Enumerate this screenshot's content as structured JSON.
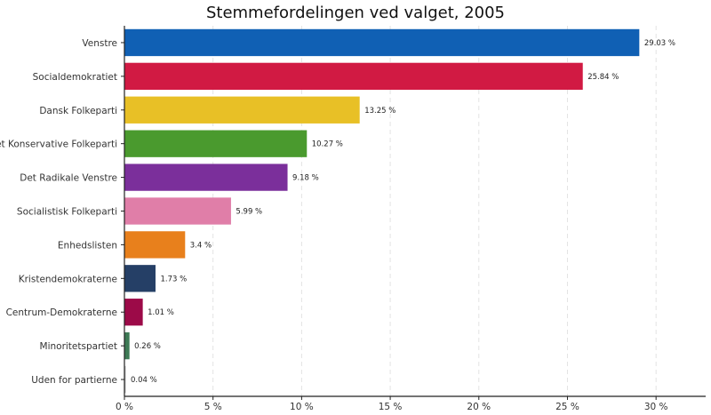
{
  "chart_data": {
    "type": "bar",
    "orientation": "horizontal",
    "title": "Stemmefordelingen ved valget, 2005",
    "xlabel": "",
    "ylabel": "",
    "xlim": [
      0,
      32.8
    ],
    "x_ticks": [
      0,
      5,
      10,
      15,
      20,
      25,
      30
    ],
    "x_tick_labels": [
      "0 %",
      "5 %",
      "10 %",
      "15 %",
      "20 %",
      "25 %",
      "30 %"
    ],
    "grid": "vertical-dashed",
    "legend": "none",
    "categories": [
      "Venstre",
      "Socialdemokratiet",
      "Dansk Folkeparti",
      "Det Konservative Folkeparti",
      "Det Radikale Venstre",
      "Socialistisk Folkeparti",
      "Enhedslisten",
      "Kristendemokraterne",
      "Centrum-Demokraterne",
      "Minoritetspartiet",
      "Uden for partierne"
    ],
    "values": [
      29.03,
      25.84,
      13.25,
      10.27,
      9.18,
      5.99,
      3.4,
      1.73,
      1.01,
      0.26,
      0.04
    ],
    "value_labels": [
      "29.03 %",
      "25.84 %",
      "13.25 %",
      "10.27 %",
      "9.18 %",
      "5.99 %",
      "3.4 %",
      "1.73 %",
      "1.01 %",
      "0.26 %",
      "0.04 %"
    ],
    "colors": [
      "#1060b4",
      "#d11a43",
      "#e8c026",
      "#4a9a2e",
      "#7b2f9b",
      "#e07ea8",
      "#e8801c",
      "#253f66",
      "#9c0a48",
      "#3d7a55",
      "#bbbbbb"
    ]
  }
}
